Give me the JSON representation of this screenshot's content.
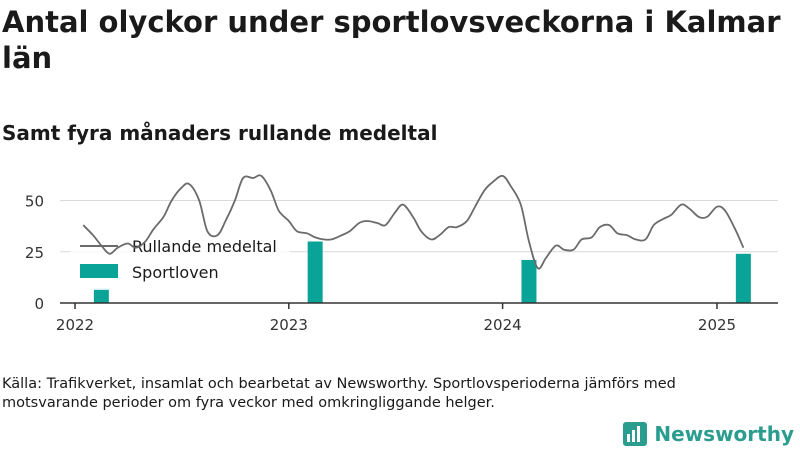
{
  "title": "Antal olyckor under sportlovsveckorna i Kalmar län",
  "subtitle": "Samt fyra månaders rullande medeltal",
  "source": "Källa: Trafikverket, insamlat och bearbetat av Newsworthy. Sportlovsperioderna jämförs med motsvarande perioder om fyra veckor med omkringliggande helger.",
  "logo": {
    "text": "Newsworthy",
    "icon": "bar-chart-logo-icon",
    "color": "#2a9d8f"
  },
  "colors": {
    "line": "#6b6b6b",
    "bar": "#0aa398",
    "grid": "#d9d9d9",
    "axis": "#333333"
  },
  "chart_data": {
    "type": "bar+line",
    "ylim": [
      0,
      60
    ],
    "yticks": [
      0,
      25,
      50
    ],
    "xticks": [
      "2022",
      "2023",
      "2024",
      "2025"
    ],
    "legend": {
      "placement": "top-left",
      "entries": [
        "Rullande medeltal",
        "Sportloven"
      ]
    },
    "grid": true,
    "series": [
      {
        "name": "Sportloven",
        "type": "bar",
        "points": [
          {
            "date": "2022-02-15",
            "value": 7
          },
          {
            "date": "2023-02-15",
            "value": 30
          },
          {
            "date": "2024-02-15",
            "value": 21
          },
          {
            "date": "2025-02-15",
            "value": 24
          }
        ]
      },
      {
        "name": "Rullande medeltal",
        "type": "line",
        "points": [
          [
            "2022-01-15",
            38
          ],
          [
            "2022-02-01",
            33
          ],
          [
            "2022-02-15",
            28
          ],
          [
            "2022-03-01",
            24
          ],
          [
            "2022-03-15",
            27
          ],
          [
            "2022-04-01",
            29
          ],
          [
            "2022-04-15",
            27
          ],
          [
            "2022-05-01",
            30
          ],
          [
            "2022-05-15",
            36
          ],
          [
            "2022-06-01",
            42
          ],
          [
            "2022-06-15",
            50
          ],
          [
            "2022-07-01",
            56
          ],
          [
            "2022-07-15",
            58
          ],
          [
            "2022-08-01",
            50
          ],
          [
            "2022-08-15",
            35
          ],
          [
            "2022-09-01",
            33
          ],
          [
            "2022-09-15",
            40
          ],
          [
            "2022-10-01",
            50
          ],
          [
            "2022-10-15",
            61
          ],
          [
            "2022-11-01",
            61
          ],
          [
            "2022-11-15",
            62
          ],
          [
            "2022-12-01",
            55
          ],
          [
            "2022-12-15",
            45
          ],
          [
            "2023-01-01",
            40
          ],
          [
            "2023-01-15",
            35
          ],
          [
            "2023-02-01",
            34
          ],
          [
            "2023-02-15",
            32
          ],
          [
            "2023-03-01",
            31
          ],
          [
            "2023-03-15",
            31
          ],
          [
            "2023-04-01",
            33
          ],
          [
            "2023-04-15",
            35
          ],
          [
            "2023-05-01",
            39
          ],
          [
            "2023-05-15",
            40
          ],
          [
            "2023-06-01",
            39
          ],
          [
            "2023-06-15",
            38
          ],
          [
            "2023-07-01",
            44
          ],
          [
            "2023-07-15",
            48
          ],
          [
            "2023-08-01",
            42
          ],
          [
            "2023-08-15",
            35
          ],
          [
            "2023-09-01",
            31
          ],
          [
            "2023-09-15",
            33
          ],
          [
            "2023-10-01",
            37
          ],
          [
            "2023-10-15",
            37
          ],
          [
            "2023-11-01",
            40
          ],
          [
            "2023-11-15",
            47
          ],
          [
            "2023-12-01",
            55
          ],
          [
            "2023-12-15",
            59
          ],
          [
            "2024-01-01",
            62
          ],
          [
            "2024-01-15",
            57
          ],
          [
            "2024-02-01",
            48
          ],
          [
            "2024-02-15",
            30
          ],
          [
            "2024-03-01",
            17
          ],
          [
            "2024-03-15",
            22
          ],
          [
            "2024-04-01",
            28
          ],
          [
            "2024-04-15",
            26
          ],
          [
            "2024-05-01",
            26
          ],
          [
            "2024-05-15",
            31
          ],
          [
            "2024-06-01",
            32
          ],
          [
            "2024-06-15",
            37
          ],
          [
            "2024-07-01",
            38
          ],
          [
            "2024-07-15",
            34
          ],
          [
            "2024-08-01",
            33
          ],
          [
            "2024-08-15",
            31
          ],
          [
            "2024-09-01",
            31
          ],
          [
            "2024-09-15",
            38
          ],
          [
            "2024-10-01",
            41
          ],
          [
            "2024-10-15",
            43
          ],
          [
            "2024-11-01",
            48
          ],
          [
            "2024-11-15",
            46
          ],
          [
            "2024-12-01",
            42
          ],
          [
            "2024-12-15",
            42
          ],
          [
            "2025-01-01",
            47
          ],
          [
            "2025-01-15",
            45
          ],
          [
            "2025-02-01",
            36
          ],
          [
            "2025-02-15",
            27
          ]
        ]
      }
    ]
  }
}
